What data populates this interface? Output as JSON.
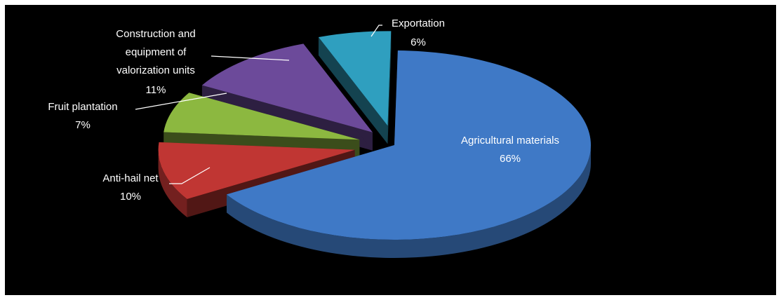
{
  "chart_data": {
    "type": "pie",
    "title": "",
    "three_d": true,
    "exploded": true,
    "slices": [
      {
        "name": "Agricultural materials",
        "label": "Agricultural materials",
        "value": 66,
        "value_label": "66%",
        "color": "#3f79c6"
      },
      {
        "name": "Anti-hail net",
        "label": "Anti-hail net",
        "value": 10,
        "value_label": "10%",
        "color": "#c03633"
      },
      {
        "name": "Fruit plantation",
        "label": "Fruit plantation",
        "value": 7,
        "value_label": "7%",
        "color": "#8cb840"
      },
      {
        "name": "Construction and equipment of valorization units",
        "label_lines": [
          "Construction and",
          "equipment of",
          "valorization units"
        ],
        "value": 11,
        "value_label": "11%",
        "color": "#6c4a9a"
      },
      {
        "name": "Exportation",
        "label": "Exportation",
        "value": 6,
        "value_label": "6%",
        "color": "#2f9fbf"
      }
    ],
    "background": "#000000"
  }
}
